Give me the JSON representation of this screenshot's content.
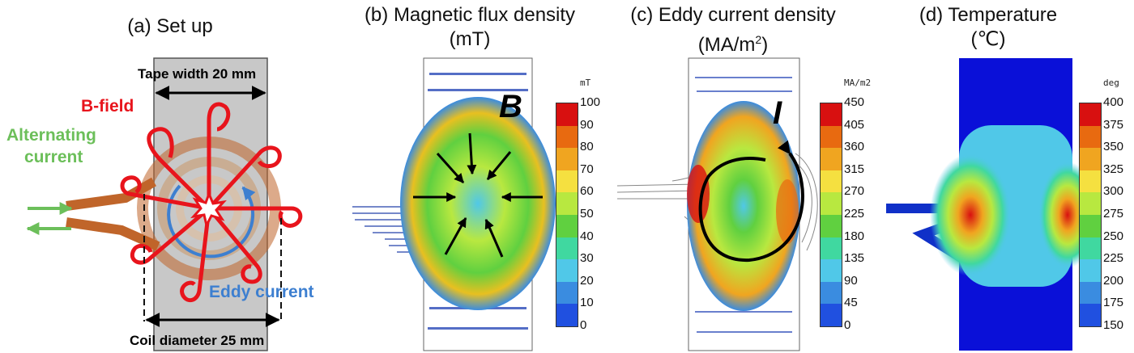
{
  "panel_a": {
    "title": "(a) Set up",
    "tape_width_label": "Tape width 20 mm",
    "coil_diameter_label": "Coil diameter 25 mm",
    "bfield_label": "B-field",
    "alternating_current_label_1": "Alternating",
    "alternating_current_label_2": "current",
    "eddy_current_label": "Eddy current",
    "colors": {
      "bfield": "#e8141c",
      "current": "#6cbf5a",
      "eddy": "#3d7fd0",
      "coil": "#c0652a",
      "tape": "#c8c8c8"
    }
  },
  "panel_b": {
    "title_line1": "(b) Magnetic flux density",
    "title_line2": "(mT)",
    "unit": "mT",
    "symbol": "B",
    "ticks": [
      "100",
      "90",
      "80",
      "70",
      "60",
      "50",
      "40",
      "30",
      "20",
      "10",
      "0"
    ]
  },
  "panel_c": {
    "title_line1": "(c) Eddy current density",
    "title_line2_prefix": "(MA/m",
    "title_line2_sup": "2",
    "title_line2_suffix": ")",
    "unit": "MA/m2",
    "symbol": "I",
    "ticks": [
      "450",
      "405",
      "360",
      "315",
      "270",
      "225",
      "180",
      "135",
      "90",
      "45",
      "0"
    ]
  },
  "panel_d": {
    "title_line1": "(d) Temperature",
    "title_line2": "(℃)",
    "unit": "deg",
    "ticks": [
      "400",
      "375",
      "350",
      "325",
      "300",
      "275",
      "250",
      "225",
      "200",
      "175",
      "150"
    ]
  },
  "colorscale": [
    "#d81010",
    "#e86a10",
    "#f0a520",
    "#f5e040",
    "#b8e840",
    "#60d040",
    "#40d8a0",
    "#50c8e8",
    "#3a8ce0",
    "#2050e0",
    "#0a10d8"
  ]
}
